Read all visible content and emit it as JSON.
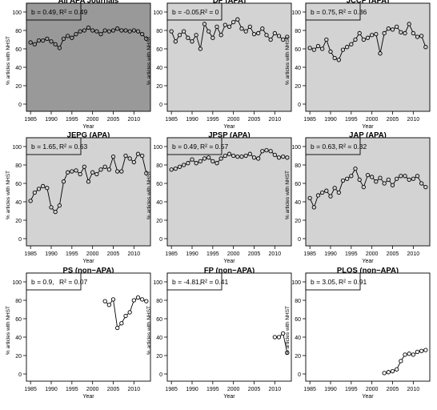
{
  "chart_data": [
    {
      "type": "line",
      "title": "All APA Journals",
      "xlabel": "Year",
      "ylabel": "% articles with NHST",
      "stat_b": "b = 0.49,",
      "stat_r2": "R² = 0.49",
      "bg": "#999999",
      "xlim": [
        1984,
        2014
      ],
      "ylim": [
        0,
        100
      ],
      "xticks": [
        1985,
        1990,
        1995,
        2000,
        2005,
        2010
      ],
      "yticks": [
        0,
        20,
        40,
        60,
        80,
        100
      ],
      "x": [
        1985,
        1986,
        1987,
        1988,
        1989,
        1990,
        1991,
        1992,
        1993,
        1994,
        1995,
        1996,
        1997,
        1998,
        1999,
        2000,
        2001,
        2002,
        2003,
        2004,
        2005,
        2006,
        2007,
        2008,
        2009,
        2010,
        2011,
        2012,
        2013
      ],
      "y": [
        67,
        65,
        69,
        69,
        71,
        68,
        65,
        61,
        71,
        74,
        72,
        76,
        79,
        80,
        83,
        80,
        79,
        76,
        80,
        79,
        80,
        82,
        80,
        80,
        79,
        80,
        79,
        76,
        71
      ]
    },
    {
      "type": "line",
      "title": "DP (APA)",
      "xlabel": "Year",
      "ylabel": "% articles with NHST",
      "stat_b": "b = -0.05,",
      "stat_r2": "R² = 0",
      "bg": "#d3d3d3",
      "xlim": [
        1984,
        2014
      ],
      "ylim": [
        0,
        100
      ],
      "xticks": [
        1985,
        1990,
        1995,
        2000,
        2005,
        2010
      ],
      "yticks": [
        0,
        20,
        40,
        60,
        80,
        100
      ],
      "x": [
        1985,
        1986,
        1987,
        1988,
        1989,
        1990,
        1991,
        1992,
        1993,
        1994,
        1995,
        1996,
        1997,
        1998,
        1999,
        2000,
        2001,
        2002,
        2003,
        2004,
        2005,
        2006,
        2007,
        2008,
        2009,
        2010,
        2011,
        2012,
        2013
      ],
      "y": [
        79,
        68,
        75,
        79,
        72,
        68,
        75,
        60,
        87,
        79,
        72,
        84,
        75,
        86,
        84,
        89,
        92,
        82,
        79,
        84,
        76,
        77,
        82,
        75,
        70,
        77,
        74,
        70,
        73
      ]
    },
    {
      "type": "line",
      "title": "JCCP (APA)",
      "xlabel": "Year",
      "ylabel": "% articles with NHST",
      "stat_b": "b = 0.75,",
      "stat_r2": "R² = 0.36",
      "bg": "#d3d3d3",
      "xlim": [
        1984,
        2014
      ],
      "ylim": [
        0,
        100
      ],
      "xticks": [
        1985,
        1990,
        1995,
        2000,
        2005,
        2010
      ],
      "yticks": [
        0,
        20,
        40,
        60,
        80,
        100
      ],
      "x": [
        1985,
        1986,
        1987,
        1988,
        1989,
        1990,
        1991,
        1992,
        1993,
        1994,
        1995,
        1996,
        1997,
        1998,
        1999,
        2000,
        2001,
        2002,
        2003,
        2004,
        2005,
        2006,
        2007,
        2008,
        2009,
        2010,
        2011,
        2012,
        2013
      ],
      "y": [
        61,
        59,
        63,
        60,
        70,
        57,
        50,
        48,
        59,
        62,
        65,
        70,
        77,
        70,
        72,
        75,
        76,
        55,
        77,
        82,
        81,
        84,
        78,
        77,
        87,
        77,
        73,
        74,
        62
      ]
    },
    {
      "type": "line",
      "title": "JEPG (APA)",
      "xlabel": "Year",
      "ylabel": "% articles with NHST",
      "stat_b": "b = 1.65,",
      "stat_r2": "R² = 0.63",
      "bg": "#d3d3d3",
      "xlim": [
        1984,
        2014
      ],
      "ylim": [
        0,
        100
      ],
      "xticks": [
        1985,
        1990,
        1995,
        2000,
        2005,
        2010
      ],
      "yticks": [
        0,
        20,
        40,
        60,
        80,
        100
      ],
      "x": [
        1985,
        1986,
        1987,
        1988,
        1989,
        1990,
        1991,
        1992,
        1993,
        1994,
        1995,
        1996,
        1997,
        1998,
        1999,
        2000,
        2001,
        2002,
        2003,
        2004,
        2005,
        2006,
        2007,
        2008,
        2009,
        2010,
        2011,
        2012,
        2013
      ],
      "y": [
        41,
        50,
        54,
        57,
        55,
        34,
        29,
        36,
        62,
        72,
        73,
        74,
        70,
        78,
        62,
        72,
        70,
        75,
        78,
        75,
        89,
        73,
        73,
        90,
        87,
        83,
        92,
        90,
        71
      ]
    },
    {
      "type": "line",
      "title": "JPSP (APA)",
      "xlabel": "Year",
      "ylabel": "% articles with NHST",
      "stat_b": "b = 0.49,",
      "stat_r2": "R² = 0.57",
      "bg": "#d3d3d3",
      "xlim": [
        1984,
        2014
      ],
      "ylim": [
        0,
        100
      ],
      "xticks": [
        1985,
        1990,
        1995,
        2000,
        2005,
        2010
      ],
      "yticks": [
        0,
        20,
        40,
        60,
        80,
        100
      ],
      "x": [
        1985,
        1986,
        1987,
        1988,
        1989,
        1990,
        1991,
        1992,
        1993,
        1994,
        1995,
        1996,
        1997,
        1998,
        1999,
        2000,
        2001,
        2002,
        2003,
        2004,
        2005,
        2006,
        2007,
        2008,
        2009,
        2010,
        2011,
        2012,
        2013
      ],
      "y": [
        75,
        76,
        78,
        80,
        82,
        86,
        82,
        84,
        87,
        88,
        84,
        82,
        87,
        90,
        92,
        90,
        89,
        89,
        90,
        92,
        88,
        87,
        95,
        96,
        95,
        91,
        88,
        89,
        88
      ]
    },
    {
      "type": "line",
      "title": "JAP (APA)",
      "xlabel": "Year",
      "ylabel": "% articles with NHST",
      "stat_b": "b = 0.63,",
      "stat_r2": "R² = 0.32",
      "bg": "#d3d3d3",
      "xlim": [
        1984,
        2014
      ],
      "ylim": [
        0,
        100
      ],
      "xticks": [
        1985,
        1990,
        1995,
        2000,
        2005,
        2010
      ],
      "yticks": [
        0,
        20,
        40,
        60,
        80,
        100
      ],
      "x": [
        1985,
        1986,
        1987,
        1988,
        1989,
        1990,
        1991,
        1992,
        1993,
        1994,
        1995,
        1996,
        1997,
        1998,
        1999,
        2000,
        2001,
        2002,
        2003,
        2004,
        2005,
        2006,
        2007,
        2008,
        2009,
        2010,
        2011,
        2012,
        2013
      ],
      "y": [
        44,
        34,
        47,
        50,
        52,
        46,
        55,
        50,
        63,
        65,
        68,
        76,
        64,
        56,
        69,
        67,
        62,
        66,
        60,
        64,
        58,
        65,
        68,
        68,
        64,
        65,
        68,
        60,
        56
      ]
    },
    {
      "type": "line",
      "title": "PS (non−APA)",
      "xlabel": "Year",
      "ylabel": "% articles with NHST",
      "stat_b": "b = 0.9,",
      "stat_r2": "R² = 0.07",
      "bg": "#ffffff",
      "xlim": [
        1984,
        2014
      ],
      "ylim": [
        0,
        100
      ],
      "xticks": [
        1985,
        1990,
        1995,
        2000,
        2005,
        2010
      ],
      "yticks": [
        0,
        20,
        40,
        60,
        80,
        100
      ],
      "x": [
        2003,
        2004,
        2005,
        2006,
        2007,
        2008,
        2009,
        2010,
        2011,
        2012,
        2013
      ],
      "y": [
        79,
        75,
        81,
        50,
        55,
        63,
        67,
        80,
        83,
        81,
        79
      ]
    },
    {
      "type": "line",
      "title": "FP (non−APA)",
      "xlabel": "Year",
      "ylabel": "% articles with NHST",
      "stat_b": "b = -4.81,",
      "stat_r2": "R² = 0.41",
      "bg": "#ffffff",
      "xlim": [
        1984,
        2014
      ],
      "ylim": [
        0,
        100
      ],
      "xticks": [
        1985,
        1990,
        1995,
        2000,
        2005,
        2010
      ],
      "yticks": [
        0,
        20,
        40,
        60,
        80,
        100
      ],
      "x": [
        2010,
        2011,
        2012,
        2013
      ],
      "y": [
        40,
        40,
        44,
        23
      ]
    },
    {
      "type": "line",
      "title": "PLOS (non−APA)",
      "xlabel": "Year",
      "ylabel": "% articles with NHST",
      "stat_b": "b = 3.05,",
      "stat_r2": "R² = 0.91",
      "bg": "#ffffff",
      "xlim": [
        1984,
        2014
      ],
      "ylim": [
        0,
        100
      ],
      "xticks": [
        1985,
        1990,
        1995,
        2000,
        2005,
        2010
      ],
      "yticks": [
        0,
        20,
        40,
        60,
        80,
        100
      ],
      "x": [
        2003,
        2004,
        2005,
        2006,
        2007,
        2008,
        2009,
        2010,
        2011,
        2012,
        2013
      ],
      "y": [
        1,
        2,
        3,
        5,
        14,
        21,
        22,
        21,
        24,
        25,
        26
      ]
    }
  ]
}
